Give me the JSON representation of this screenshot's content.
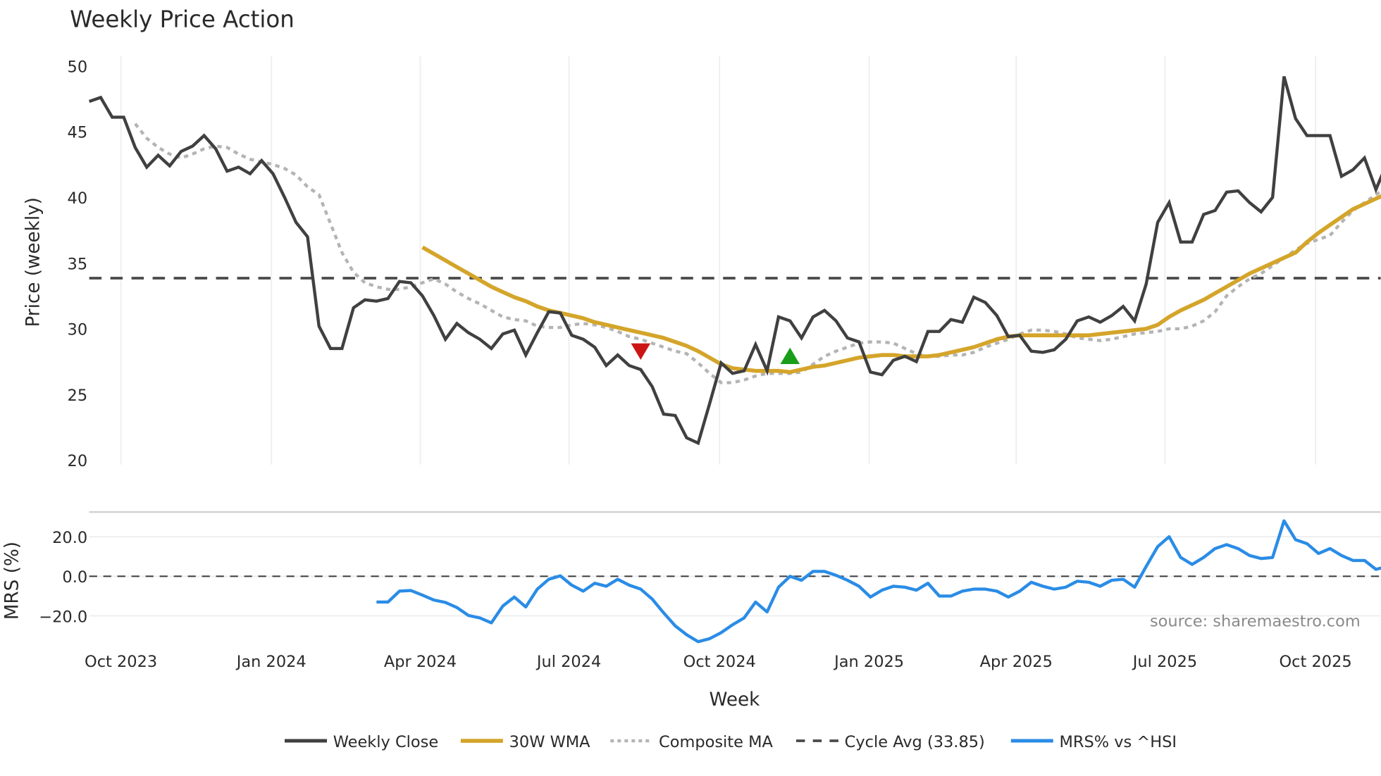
{
  "title": "Weekly Price Action",
  "colors": {
    "close": "#404040",
    "wma": "#d4a52a",
    "composite": "#b4b4b4",
    "cycle": "#4a4a4a",
    "mrs": "#2a8ce6",
    "sell_marker": "#cc1414",
    "buy_marker": "#1a9e1a",
    "grid": "#eceef0"
  },
  "price_axis": {
    "label": "Price (weekly)",
    "ticks": [
      "50",
      "45",
      "40",
      "35",
      "30",
      "25",
      "20"
    ]
  },
  "mrs_axis": {
    "label": "MRS (%)",
    "ticks": [
      "20.0",
      "0.0",
      "−20.0"
    ]
  },
  "x_axis": {
    "label": "Week",
    "ticks": [
      "Oct 2023",
      "Jan 2024",
      "Apr 2024",
      "Jul 2024",
      "Oct 2024",
      "Jan 2025",
      "Apr 2025",
      "Jul 2025",
      "Oct 2025"
    ]
  },
  "legend": {
    "items": [
      "Weekly Close",
      "30W WMA",
      "Composite MA",
      "Cycle Avg (33.85)",
      "MRS% vs ^HSI"
    ]
  },
  "source": "source: sharemaestro.com",
  "chart_data": [
    {
      "type": "line",
      "title": "Weekly Price Action",
      "xlabel": "Week",
      "ylabel": "Price (weekly)",
      "ylim": [
        20,
        50
      ],
      "grid": true,
      "legend_position": "bottom",
      "x_tick_labels": [
        "Oct 2023",
        "Jan 2024",
        "Apr 2024",
        "Jul 2024",
        "Oct 2024",
        "Jan 2025",
        "Apr 2025",
        "Jul 2025",
        "Oct 2025"
      ],
      "series": [
        {
          "name": "Weekly Close",
          "start_week_offset": 0,
          "values": [
            47.3,
            47.6,
            46.1,
            46.1,
            43.8,
            42.3,
            43.2,
            42.4,
            43.5,
            43.9,
            44.7,
            43.7,
            42.0,
            42.3,
            41.8,
            42.8,
            41.8,
            40.0,
            38.1,
            37.0,
            30.2,
            28.5,
            28.5,
            31.6,
            32.2,
            32.1,
            32.3,
            33.6,
            33.5,
            32.5,
            31.0,
            29.2,
            30.4,
            29.7,
            29.2,
            28.5,
            29.6,
            29.9,
            28.0,
            29.7,
            31.3,
            31.2,
            29.5,
            29.2,
            28.6,
            27.2,
            28.0,
            27.2,
            26.9,
            25.6,
            23.5,
            23.4,
            21.7,
            21.3,
            24.3,
            27.4,
            26.6,
            26.8,
            28.8,
            26.8,
            30.9,
            30.6,
            29.3,
            30.9,
            31.4,
            30.6,
            29.3,
            29.0,
            26.7,
            26.5,
            27.6,
            27.9,
            27.5,
            29.8,
            29.8,
            30.7,
            30.5,
            32.4,
            32.0,
            31.0,
            29.4,
            29.5,
            28.3,
            28.2,
            28.4,
            29.2,
            30.6,
            30.9,
            30.5,
            31.0,
            31.7,
            30.6,
            33.4,
            38.1,
            39.6,
            36.6,
            36.6,
            38.7,
            39.0,
            40.4,
            40.5,
            39.6,
            38.9,
            40.0,
            49.2,
            46.0,
            44.7,
            44.7,
            44.7,
            41.6,
            42.1,
            43.0,
            40.6,
            42.7
          ]
        },
        {
          "name": "30W WMA",
          "start_week_offset": 29,
          "values": [
            36.2,
            35.7,
            35.2,
            34.7,
            34.2,
            33.7,
            33.2,
            32.8,
            32.4,
            32.1,
            31.7,
            31.4,
            31.2,
            31.0,
            30.8,
            30.5,
            30.3,
            30.1,
            29.9,
            29.7,
            29.5,
            29.3,
            29.0,
            28.7,
            28.3,
            27.8,
            27.3,
            27.0,
            26.9,
            26.8,
            26.8,
            26.8,
            26.7,
            26.9,
            27.1,
            27.2,
            27.4,
            27.6,
            27.8,
            27.9,
            28.0,
            28.0,
            27.9,
            27.9,
            27.9,
            28.0,
            28.2,
            28.4,
            28.6,
            28.9,
            29.2,
            29.4,
            29.5,
            29.5,
            29.5,
            29.5,
            29.5,
            29.5,
            29.5,
            29.6,
            29.7,
            29.8,
            29.9,
            30.0,
            30.3,
            30.9,
            31.4,
            31.8,
            32.2,
            32.7,
            33.2,
            33.7,
            34.2,
            34.6,
            35.0,
            35.4,
            35.8,
            36.6,
            37.3,
            37.9,
            38.5,
            39.1,
            39.5,
            39.9,
            40.3,
            40.5,
            40.8
          ]
        },
        {
          "name": "Composite MA",
          "start_week_offset": 4,
          "values": [
            45.6,
            44.5,
            43.8,
            43.3,
            43.0,
            43.3,
            43.7,
            43.9,
            43.8,
            43.3,
            42.9,
            42.7,
            42.5,
            42.2,
            41.7,
            40.8,
            40.2,
            38.0,
            35.8,
            34.3,
            33.5,
            33.2,
            33.0,
            33.0,
            33.2,
            33.5,
            33.8,
            33.4,
            32.8,
            32.3,
            31.9,
            31.4,
            30.9,
            30.7,
            30.6,
            30.2,
            30.1,
            30.1,
            30.3,
            30.4,
            30.3,
            30.1,
            29.8,
            29.4,
            29.2,
            28.9,
            28.6,
            28.3,
            28.1,
            27.4,
            26.6,
            25.9,
            25.9,
            26.1,
            26.4,
            26.6,
            26.6,
            26.6,
            26.7,
            27.3,
            27.9,
            28.3,
            28.6,
            28.9,
            29.0,
            29.0,
            28.9,
            28.5,
            28.1,
            27.9,
            27.9,
            28.0,
            28.0,
            28.2,
            28.6,
            28.9,
            29.2,
            29.6,
            29.9,
            29.9,
            29.8,
            29.6,
            29.3,
            29.2,
            29.1,
            29.2,
            29.4,
            29.6,
            29.7,
            29.8,
            30.0,
            30.0,
            30.2,
            30.6,
            31.3,
            32.5,
            33.2,
            33.8,
            34.2,
            34.8,
            35.4,
            36.0,
            36.5,
            36.8,
            37.1,
            38.1,
            39.0,
            39.6,
            40.2,
            40.8,
            41.1,
            41.1,
            41.0,
            41.1,
            41.1,
            41.0
          ]
        },
        {
          "name": "Cycle Avg (33.85)",
          "constant": 33.85
        }
      ],
      "markers": [
        {
          "type": "sell",
          "shape": "triangle-down",
          "week": 48,
          "price": 28.3
        },
        {
          "type": "buy",
          "shape": "triangle-up",
          "week": 61,
          "price": 27.9
        }
      ]
    },
    {
      "type": "line",
      "title": "",
      "xlabel": "Week",
      "ylabel": "MRS (%)",
      "ylim": [
        -32,
        33
      ],
      "reference_line": 0,
      "series": [
        {
          "name": "MRS% vs ^HSI",
          "start_week_offset": 25,
          "values": [
            -13.0,
            -13.0,
            -7.5,
            -7.2,
            -9.5,
            -12.0,
            -13.2,
            -15.8,
            -19.8,
            -21.0,
            -23.5,
            -15.0,
            -10.5,
            -15.5,
            -6.5,
            -1.5,
            0.2,
            -4.5,
            -7.5,
            -3.5,
            -5.0,
            -1.5,
            -4.5,
            -6.5,
            -11.5,
            -18.5,
            -25.0,
            -29.5,
            -33.0,
            -31.5,
            -28.5,
            -24.5,
            -21.0,
            -13.0,
            -18.0,
            -5.5,
            0.0,
            -2.0,
            2.5,
            2.5,
            0.5,
            -2.0,
            -5.0,
            -10.5,
            -7.0,
            -5.0,
            -5.5,
            -7.0,
            -3.5,
            -10.0,
            -10.0,
            -7.5,
            -6.5,
            -6.5,
            -7.5,
            -10.5,
            -7.5,
            -3.0,
            -5.0,
            -6.5,
            -5.5,
            -2.5,
            -3.0,
            -5.0,
            -2.0,
            -1.5,
            -5.5,
            5.0,
            15.0,
            20.0,
            9.5,
            6.0,
            9.5,
            14.0,
            16.0,
            14.0,
            10.5,
            9.0,
            9.5,
            28.0,
            18.5,
            16.5,
            11.5,
            14.0,
            10.5,
            8.0,
            8.0,
            3.5,
            5.0
          ]
        }
      ]
    }
  ]
}
